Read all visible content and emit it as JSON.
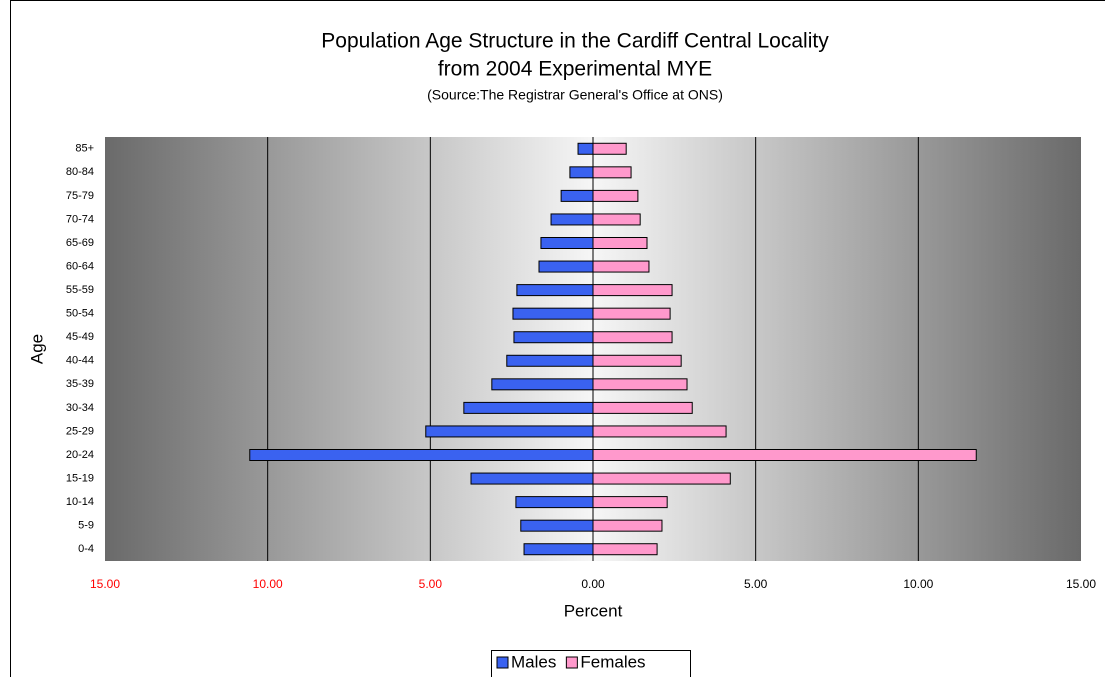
{
  "chart_data": {
    "type": "pyramid",
    "title": "Population Age Structure in the Cardiff Central Locality",
    "subtitle": "from 2004 Experimental MYE",
    "source": "(Source:The Registrar General's Office at ONS)",
    "x_label": "Percent",
    "y_label": "Age",
    "categories": [
      "0-4",
      "5-9",
      "10-14",
      "15-19",
      "20-24",
      "25-29",
      "30-34",
      "35-39",
      "40-44",
      "45-49",
      "50-54",
      "55-59",
      "60-64",
      "65-69",
      "70-74",
      "75-79",
      "80-84",
      "85+"
    ],
    "series": [
      {
        "name": "Males",
        "color": "#3a62f0",
        "values": [
          -2.12,
          -2.22,
          -2.37,
          -3.75,
          -10.55,
          -5.14,
          -3.97,
          -3.11,
          -2.65,
          -2.43,
          -2.46,
          -2.34,
          -1.66,
          -1.6,
          -1.29,
          -0.98,
          -0.71,
          -0.46
        ]
      },
      {
        "name": "Females",
        "color": "#ff99cc",
        "values": [
          1.97,
          2.12,
          2.28,
          4.22,
          11.78,
          4.09,
          3.05,
          2.89,
          2.71,
          2.43,
          2.37,
          2.43,
          1.72,
          1.66,
          1.45,
          1.38,
          1.17,
          1.02
        ]
      }
    ],
    "xlim": [
      -15,
      15
    ],
    "xticks": [
      {
        "value": -15,
        "label": "15.00"
      },
      {
        "value": -10,
        "label": "10.00"
      },
      {
        "value": -5,
        "label": "5.00"
      },
      {
        "value": 0,
        "label": "0.00"
      },
      {
        "value": 5,
        "label": "5.00"
      },
      {
        "value": 10,
        "label": "10.00"
      },
      {
        "value": 15,
        "label": "15.00"
      }
    ],
    "negative_tick_color": "#ff0000",
    "grid": true,
    "legend": "bottom"
  }
}
